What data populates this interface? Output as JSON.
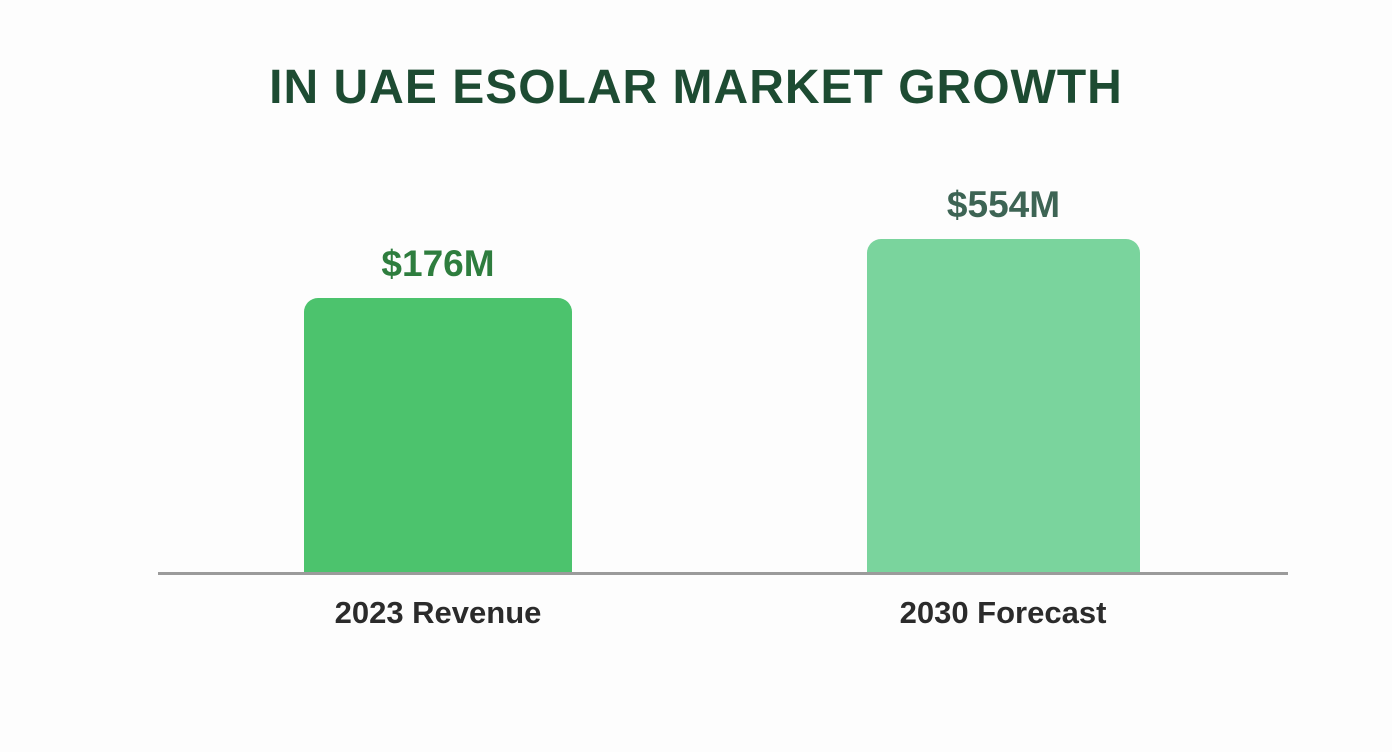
{
  "chart": {
    "title": "IN UAE ESOLAR MARKET GROWTH",
    "title_color": "#1d4b32",
    "background_color": "#fdfdfd",
    "axis_line_color": "#9b9b9b"
  },
  "chart_data": {
    "type": "bar",
    "title": "IN UAE ESOLAR MARKET GROWTH",
    "categories": [
      "2023 Revenue",
      "2030 Forecast"
    ],
    "values": [
      176,
      554
    ],
    "value_labels": [
      "$176M",
      "$554M"
    ],
    "value_label_colors": [
      "#2e7d3e",
      "#3d6454"
    ],
    "bar_colors": [
      "#4cc36d",
      "#7ad49d"
    ],
    "xlabel": "",
    "ylabel": "",
    "grid": false,
    "legend": false,
    "orientation": "vertical",
    "baseline": "gray horizontal axis line under bars"
  }
}
